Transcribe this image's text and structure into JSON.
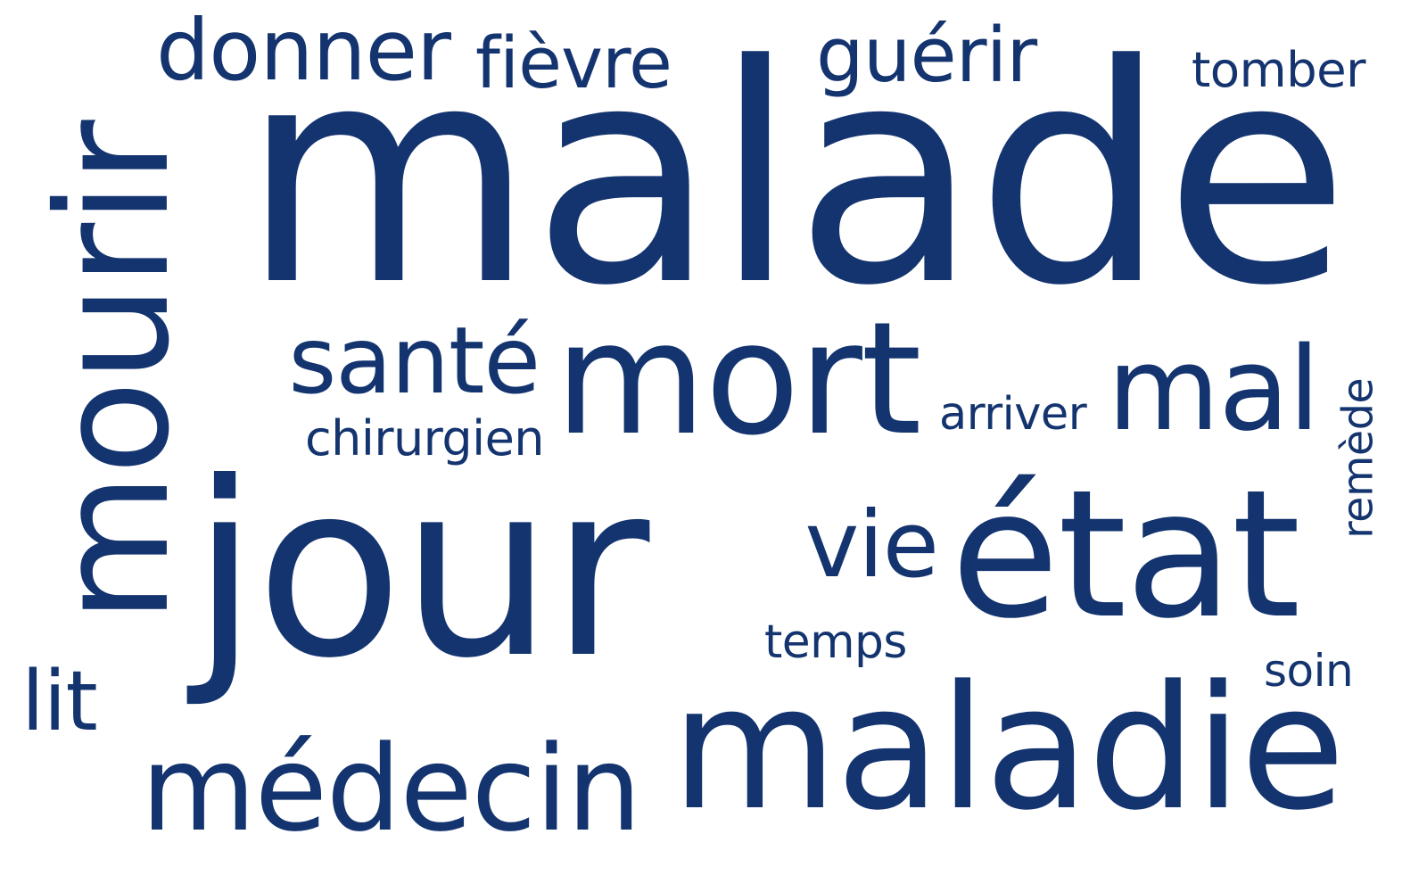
{
  "color": "#14346f",
  "words": [
    {
      "id": "malade",
      "text": "malade"
    },
    {
      "id": "jour",
      "text": "jour"
    },
    {
      "id": "mourir",
      "text": "mourir",
      "vertical": true
    },
    {
      "id": "maladie",
      "text": "maladie"
    },
    {
      "id": "mort",
      "text": "mort"
    },
    {
      "id": "medecin",
      "text": "médecin"
    },
    {
      "id": "etat",
      "text": "état"
    },
    {
      "id": "mal",
      "text": "mal"
    },
    {
      "id": "donner",
      "text": "donner"
    },
    {
      "id": "sante",
      "text": "santé"
    },
    {
      "id": "guerir",
      "text": "guérir"
    },
    {
      "id": "fievre",
      "text": "fièvre"
    },
    {
      "id": "vie",
      "text": "vie"
    },
    {
      "id": "chirurgien",
      "text": "chirurgien"
    },
    {
      "id": "arriver",
      "text": "arriver"
    },
    {
      "id": "tomber",
      "text": "tomber"
    },
    {
      "id": "temps",
      "text": "temps"
    },
    {
      "id": "soin",
      "text": "soin"
    },
    {
      "id": "lit",
      "text": "lit"
    },
    {
      "id": "remede",
      "text": "remède",
      "vertical": true
    }
  ]
}
